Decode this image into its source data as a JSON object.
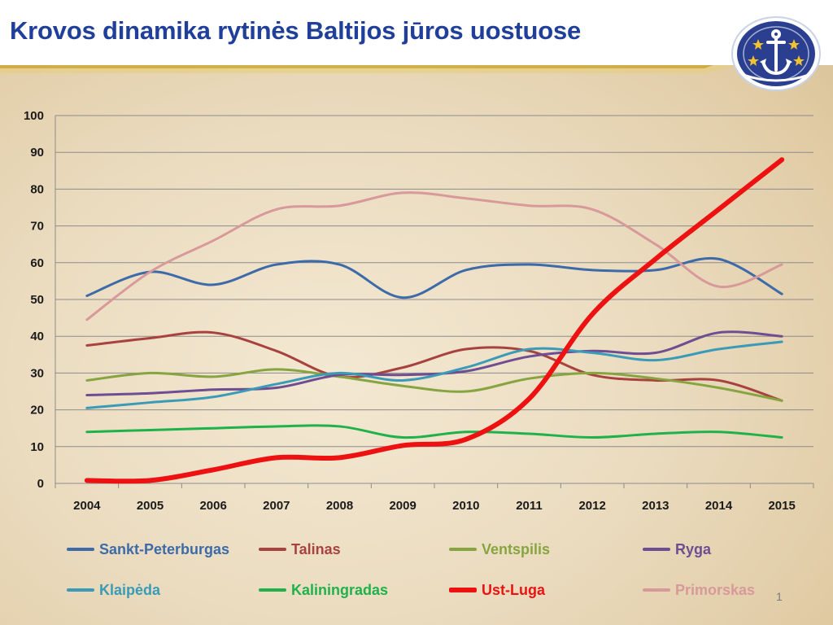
{
  "header": {
    "title": "Krovos dinamika rytinės Baltijos jūros uostuose"
  },
  "page_number": "1",
  "colors": {
    "title": "#1f3f9a",
    "gold": "#c9a227",
    "logo_blue": "#2a3f8f"
  },
  "chart_data": {
    "type": "line",
    "title": "",
    "xlabel": "",
    "ylabel": "",
    "x": [
      "2004",
      "2005",
      "2006",
      "2007",
      "2008",
      "2009",
      "2010",
      "2011",
      "2012",
      "2013",
      "2014",
      "2015"
    ],
    "ylim": [
      0,
      100
    ],
    "yticks": [
      0,
      10,
      20,
      30,
      40,
      50,
      60,
      70,
      80,
      90,
      100
    ],
    "grid": true,
    "legend_position": "bottom",
    "series": [
      {
        "name": "Sankt-Peterburgas",
        "color": "#3d6aa8",
        "width": 3,
        "values": [
          51,
          57.5,
          54,
          59.5,
          59.5,
          50.5,
          58,
          59.5,
          58,
          58,
          61,
          51.5
        ]
      },
      {
        "name": "Talinas",
        "color": "#a8423f",
        "width": 3,
        "values": [
          37.5,
          39.5,
          41,
          36,
          29,
          31.5,
          36.5,
          36,
          29.5,
          28,
          28,
          22.5
        ]
      },
      {
        "name": "Ventspilis",
        "color": "#86a540",
        "width": 3,
        "values": [
          28,
          30,
          29,
          31,
          29,
          26.5,
          25,
          28.5,
          30,
          28.5,
          26,
          22.5
        ]
      },
      {
        "name": "Ryga",
        "color": "#6e4d92",
        "width": 3,
        "values": [
          24,
          24.5,
          25.5,
          26,
          29.5,
          29.5,
          30.5,
          34.5,
          36,
          35.5,
          41,
          40
        ]
      },
      {
        "name": "Klaipėda",
        "color": "#3a9bb8",
        "width": 3,
        "values": [
          20.5,
          22,
          23.5,
          27,
          30,
          28,
          31.5,
          36.5,
          35.5,
          33.5,
          36.5,
          38.5
        ]
      },
      {
        "name": "Kaliningradas",
        "color": "#1fb24a",
        "width": 3,
        "values": [
          14,
          14.5,
          15,
          15.5,
          15.5,
          12.5,
          14,
          13.5,
          12.5,
          13.5,
          14,
          12.5
        ]
      },
      {
        "name": "Ust-Luga",
        "color": "#ee1111",
        "width": 6,
        "values": [
          0.8,
          0.8,
          3.7,
          7,
          7,
          10.3,
          12,
          23,
          46,
          61,
          74.5,
          88
        ]
      },
      {
        "name": "Primorskas",
        "color": "#d8999a",
        "width": 3,
        "values": [
          44.5,
          57.5,
          66,
          74.5,
          75.5,
          79,
          77.5,
          75.5,
          74.5,
          65,
          53.5,
          59.5
        ]
      }
    ]
  }
}
